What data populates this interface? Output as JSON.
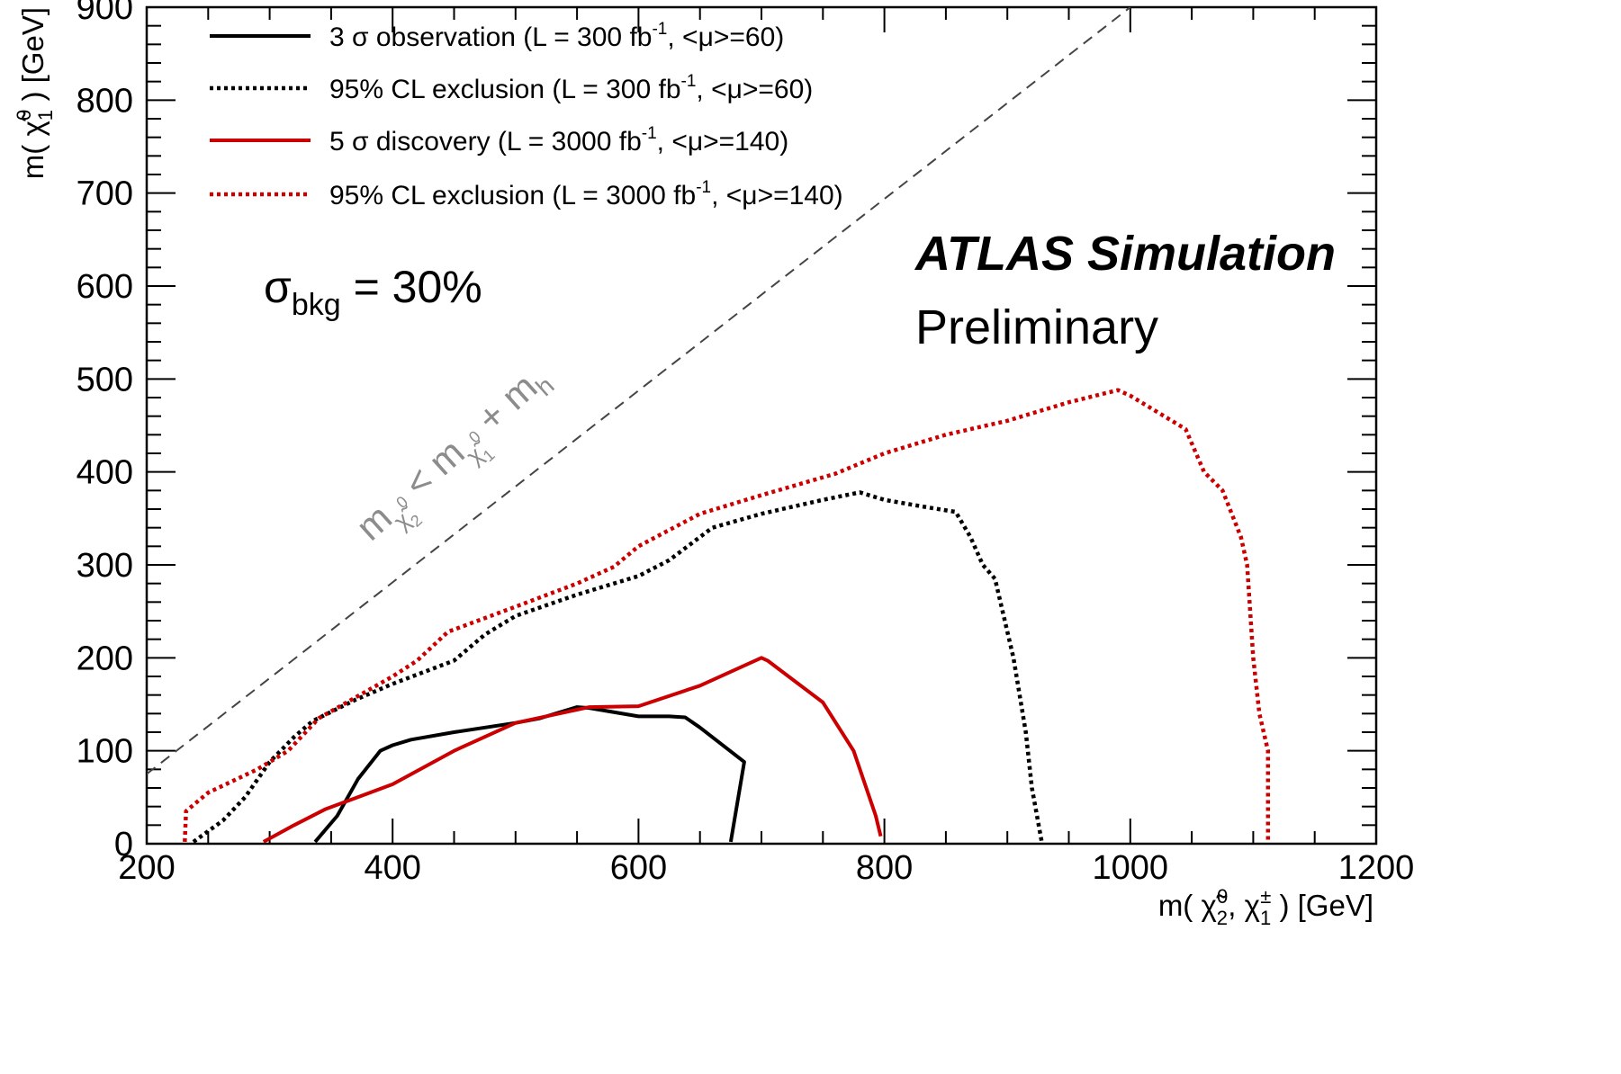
{
  "chart_data": {
    "type": "line",
    "x": {
      "label_prefix": "m( ",
      "label_main": "χ̃",
      "label_sub": "2",
      "label_sup": "0",
      "label_mid": ", χ",
      "label_sub2": "1",
      "label_sup2": "±",
      "label_suffix": " ) [GeV]",
      "range": [
        200,
        1200
      ],
      "major_ticks": [
        200,
        400,
        600,
        800,
        1000,
        1200
      ],
      "tick_labels": [
        "200",
        "400",
        "600",
        "800",
        "1000",
        "1200"
      ],
      "minor_step": 50
    },
    "y": {
      "label_prefix": "m( ",
      "label_main": "χ̃",
      "label_sub": "1",
      "label_sup": "0",
      "label_suffix": " ) [GeV]",
      "range": [
        0,
        900
      ],
      "major_ticks": [
        0,
        100,
        200,
        300,
        400,
        500,
        600,
        700,
        800,
        900
      ],
      "tick_labels": [
        "0",
        "100",
        "200",
        "300",
        "400",
        "500",
        "600",
        "700",
        "800",
        "900"
      ],
      "minor_step": 20
    },
    "series": [
      {
        "name": "3 σ observation",
        "legend": {
          "pre": "3 σ observation (L = 300 fb",
          "sup": "-1",
          "post": ", <μ>=60)"
        },
        "color": "#000000",
        "style": "solid",
        "points": [
          [
            337,
            2
          ],
          [
            355,
            30
          ],
          [
            372,
            70
          ],
          [
            390,
            100
          ],
          [
            400,
            106
          ],
          [
            415,
            112
          ],
          [
            450,
            120
          ],
          [
            500,
            130
          ],
          [
            520,
            135
          ],
          [
            550,
            147
          ],
          [
            560,
            146
          ],
          [
            600,
            137
          ],
          [
            625,
            137
          ],
          [
            638,
            136
          ],
          [
            650,
            125
          ],
          [
            686,
            88
          ],
          [
            675,
            2
          ]
        ]
      },
      {
        "name": "95% CL exclusion 300",
        "legend": {
          "pre": "95% CL exclusion (L = 300 fb",
          "sup": "-1",
          "post": ", <μ>=60)"
        },
        "color": "#000000",
        "style": "dotted",
        "points": [
          [
            238,
            2
          ],
          [
            262,
            25
          ],
          [
            280,
            50
          ],
          [
            300,
            88
          ],
          [
            320,
            115
          ],
          [
            335,
            132
          ],
          [
            370,
            155
          ],
          [
            400,
            172
          ],
          [
            450,
            197
          ],
          [
            475,
            225
          ],
          [
            500,
            245
          ],
          [
            550,
            268
          ],
          [
            600,
            288
          ],
          [
            625,
            305
          ],
          [
            660,
            340
          ],
          [
            700,
            355
          ],
          [
            750,
            370
          ],
          [
            780,
            378
          ],
          [
            800,
            370
          ],
          [
            830,
            363
          ],
          [
            858,
            357
          ],
          [
            870,
            330
          ],
          [
            880,
            300
          ],
          [
            890,
            285
          ],
          [
            905,
            200
          ],
          [
            915,
            120
          ],
          [
            920,
            60
          ],
          [
            928,
            2
          ]
        ]
      },
      {
        "name": "5 σ discovery",
        "legend": {
          "pre": "5 σ discovery (L = 3000 fb",
          "sup": "-1",
          "post": ", <μ>=140)"
        },
        "color": "#cc0000",
        "style": "solid",
        "points": [
          [
            295,
            2
          ],
          [
            320,
            20
          ],
          [
            345,
            37
          ],
          [
            400,
            64
          ],
          [
            450,
            100
          ],
          [
            500,
            130
          ],
          [
            560,
            147
          ],
          [
            600,
            148
          ],
          [
            650,
            170
          ],
          [
            700,
            200
          ],
          [
            705,
            197
          ],
          [
            750,
            152
          ],
          [
            775,
            100
          ],
          [
            793,
            30
          ],
          [
            797,
            8
          ]
        ]
      },
      {
        "name": "95% CL exclusion 3000",
        "legend": {
          "pre": "95% CL exclusion (L = 3000 fb",
          "sup": "-1",
          "post": ", <μ>=140)"
        },
        "color": "#cc0000",
        "style": "dotted",
        "points": [
          [
            231,
            2
          ],
          [
            232,
            35
          ],
          [
            250,
            55
          ],
          [
            290,
            80
          ],
          [
            315,
            100
          ],
          [
            340,
            135
          ],
          [
            400,
            180
          ],
          [
            420,
            197
          ],
          [
            445,
            228
          ],
          [
            500,
            255
          ],
          [
            550,
            280
          ],
          [
            580,
            298
          ],
          [
            600,
            320
          ],
          [
            650,
            355
          ],
          [
            700,
            375
          ],
          [
            760,
            398
          ],
          [
            800,
            420
          ],
          [
            850,
            440
          ],
          [
            900,
            455
          ],
          [
            950,
            475
          ],
          [
            990,
            488
          ],
          [
            1000,
            482
          ],
          [
            1045,
            446
          ],
          [
            1060,
            400
          ],
          [
            1075,
            380
          ],
          [
            1090,
            330
          ],
          [
            1095,
            300
          ],
          [
            1100,
            200
          ],
          [
            1105,
            140
          ],
          [
            1112,
            100
          ],
          [
            1112,
            2
          ]
        ]
      }
    ],
    "kinematic_limit": {
      "note": "m(χ̃2⁰) < m(χ̃1⁰) + m_h",
      "points": [
        [
          200,
          75
        ],
        [
          1000,
          900
        ]
      ],
      "color": "#444444",
      "label_a": "m",
      "label_sub_a": "χ̃",
      "label_sub_a_num": "2",
      "label_sub_a_sup": "0",
      "label_lt": " < m",
      "label_sub_b": "χ̃",
      "label_sub_b_num": "1",
      "label_sub_b_sup": "0",
      "label_plus": " + m",
      "label_sub_h": "h",
      "label_color": "#8c8c8c"
    },
    "annotations": {
      "experiment": "ATLAS Simulation",
      "status": "Preliminary",
      "sigma_symbol": "σ",
      "sigma_sub": "bkg",
      "sigma_value": " = 30%"
    },
    "legend_position": "top-left",
    "grid": false
  }
}
